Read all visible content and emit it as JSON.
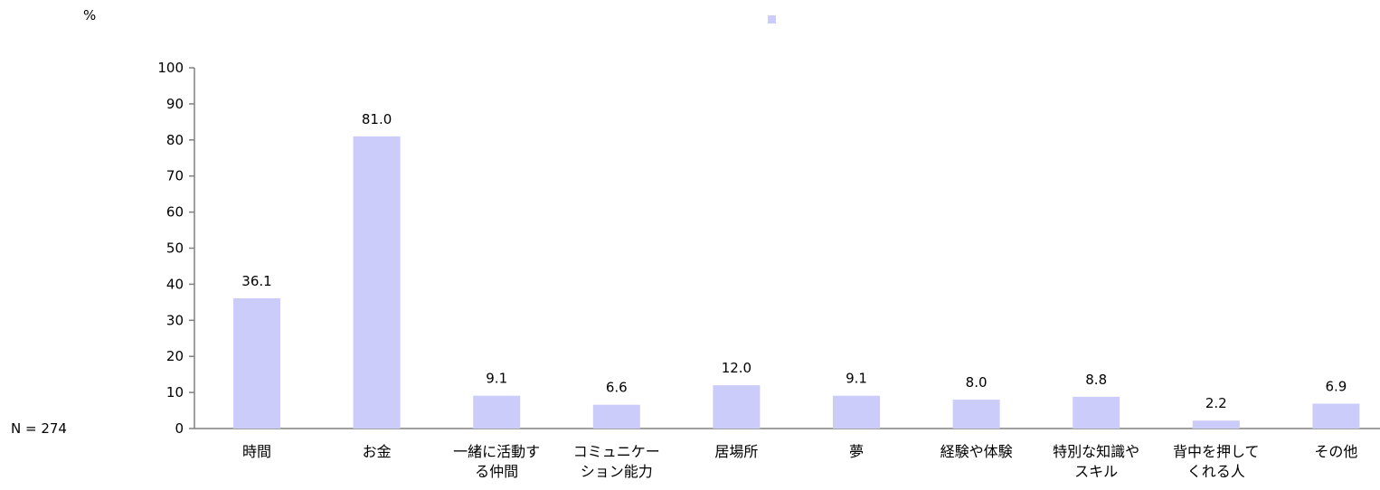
{
  "chart_data": {
    "type": "bar",
    "unit_label": "%",
    "sample_note": "N = 274",
    "categories": [
      [
        "時間"
      ],
      [
        "お金"
      ],
      [
        "一緒に活動す",
        "る仲間"
      ],
      [
        "コミュニケー",
        "ション能力"
      ],
      [
        "居場所"
      ],
      [
        "夢"
      ],
      [
        "経験や体験"
      ],
      [
        "特別な知識や",
        "スキル"
      ],
      [
        "背中を押して",
        "くれる人"
      ],
      [
        "その他"
      ]
    ],
    "values": [
      36.1,
      81.0,
      9.1,
      6.6,
      12.0,
      9.1,
      8.0,
      8.8,
      2.2,
      6.9
    ],
    "value_labels": [
      "36.1",
      "81.0",
      "9.1",
      "6.6",
      "12.0",
      "9.1",
      "8.0",
      "8.8",
      "2.2",
      "6.9"
    ],
    "ylim": [
      0,
      100
    ],
    "yticks": [
      "0",
      "10",
      "20",
      "30",
      "40",
      "50",
      "60",
      "70",
      "80",
      "90",
      "100"
    ],
    "grid": false,
    "legend": {
      "placement": "top-center",
      "entries": [
        ""
      ]
    },
    "colors": {
      "bar": "#ccccfb",
      "axis": "#808080"
    }
  }
}
